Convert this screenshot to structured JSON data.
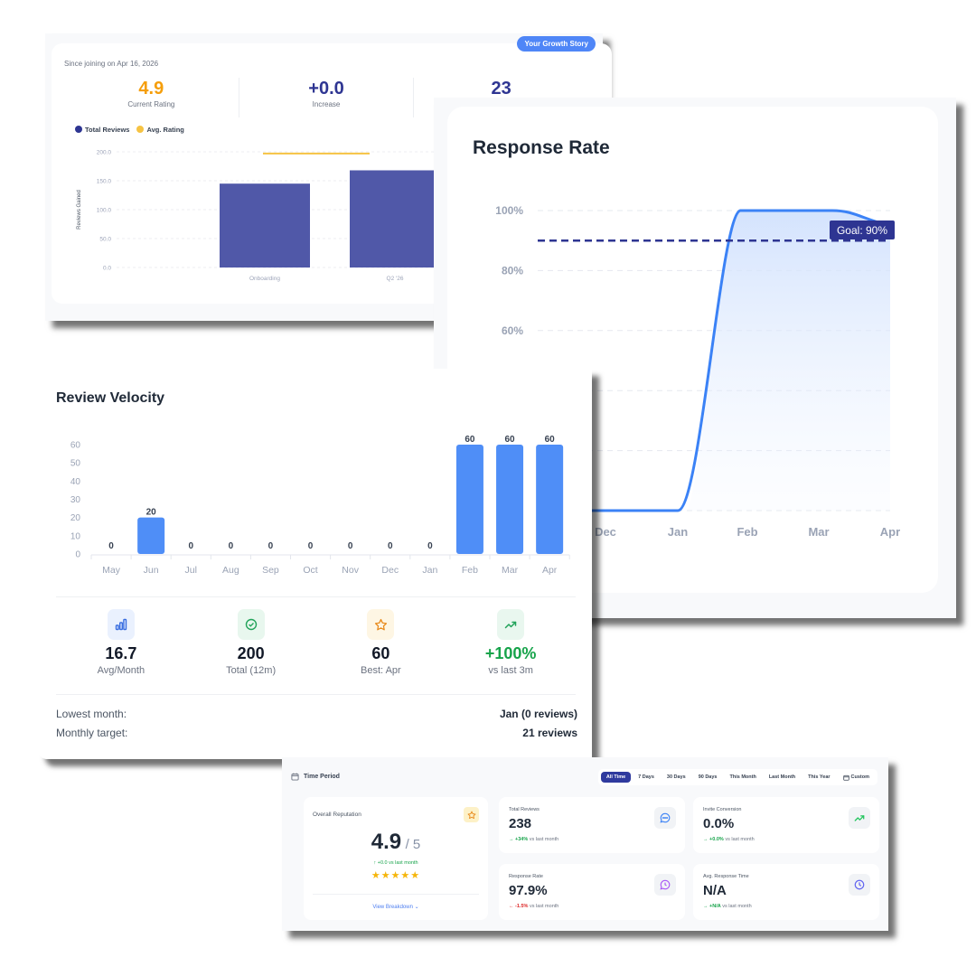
{
  "growth": {
    "badge": "Your Growth Story",
    "since": "Since joining on Apr 16, 2026",
    "stats": [
      {
        "value": "4.9",
        "label": "Current Rating",
        "color": "#f59e0b"
      },
      {
        "value": "+0.0",
        "label": "Increase",
        "color": "#2e3592"
      },
      {
        "value": "23",
        "label": "",
        "color": "#2e3592"
      }
    ],
    "legend": [
      {
        "label": "Total Reviews",
        "color": "#2e3592"
      },
      {
        "label": "Avg. Rating",
        "color": "#f6c343"
      }
    ]
  },
  "response_rate": {
    "title": "Response Rate",
    "goal_label": "Goal: 90%"
  },
  "velocity": {
    "title": "Review Velocity",
    "stats": [
      {
        "icon": "bar-chart-icon",
        "value": "16.7",
        "label": "Avg/Month",
        "color": "#111827",
        "bg": "#eaf1fe",
        "fg": "#3b6fe0"
      },
      {
        "icon": "check-circle-icon",
        "value": "200",
        "label": "Total (12m)",
        "color": "#111827",
        "bg": "#e8f7ee",
        "fg": "#22a35a"
      },
      {
        "icon": "star-icon",
        "value": "60",
        "label": "Best: Apr",
        "color": "#111827",
        "bg": "#fef6e4",
        "fg": "#e8891a"
      },
      {
        "icon": "trending-up-icon",
        "value": "+100%",
        "label": "vs last 3m",
        "color": "#16a34a",
        "bg": "#e9f7ef",
        "fg": "#22a35a"
      }
    ],
    "rows": [
      {
        "key": "Lowest month:",
        "value": "Jan (0 reviews)"
      },
      {
        "key": "Monthly target:",
        "value": "21 reviews"
      }
    ]
  },
  "dashboard": {
    "time_period_label": "Time Period",
    "tabs": [
      "All Time",
      "7 Days",
      "30 Days",
      "90 Days",
      "This Month",
      "Last Month",
      "This Year",
      "Custom"
    ],
    "active_tab": "All Time",
    "reputation": {
      "title": "Overall Reputation",
      "value": "4.9",
      "denominator": "/ 5",
      "change": "↑  +0.0 vs last month",
      "stars": "★★★★★",
      "link": "View Breakdown ⌄"
    },
    "metrics": [
      {
        "title": "Total Reviews",
        "value": "238",
        "arrow": "→",
        "delta": "+34%",
        "trend": "up",
        "suffix": "vs last month",
        "icon": "message-icon",
        "icon_color": "#3b82f6"
      },
      {
        "title": "Invite Conversion",
        "value": "0.0%",
        "arrow": "→",
        "delta": "+0.0%",
        "trend": "up",
        "suffix": "vs last month",
        "icon": "trending-up-icon",
        "icon_color": "#22c55e"
      },
      {
        "title": "Response Rate",
        "value": "97.9%",
        "arrow": "←",
        "delta": "-1.5%",
        "trend": "down",
        "suffix": "vs last month",
        "icon": "message-clock-icon",
        "icon_color": "#a855f7"
      },
      {
        "title": "Avg. Response Time",
        "value": "N/A",
        "arrow": "→",
        "delta": "+N/A",
        "trend": "up",
        "suffix": "vs last month",
        "icon": "clock-icon",
        "icon_color": "#6366f1"
      }
    ]
  },
  "chart_data": [
    {
      "type": "bar",
      "title": "Your Growth Story",
      "categories": [
        "Onboarding",
        "Q2 '26"
      ],
      "series": [
        {
          "name": "Total Reviews",
          "values": [
            145,
            168
          ],
          "color": "#5058a8"
        },
        {
          "name": "Avg. Rating",
          "values": [
            4.9,
            4.9
          ],
          "color": "#f6c343",
          "render": "line"
        }
      ],
      "ylabel": "Reviews Gained",
      "yticks": [
        "0.0",
        "50.0",
        "100.0",
        "150.0",
        "200.0"
      ],
      "ylim": [
        0,
        200
      ],
      "grid": true,
      "legend_position": "top-left"
    },
    {
      "type": "area",
      "title": "Response Rate",
      "categories": [
        "Dec",
        "Jan",
        "Feb",
        "Mar",
        "Apr"
      ],
      "values": [
        0,
        0,
        100,
        100,
        95
      ],
      "yticks": [
        "60%",
        "80%",
        "100%"
      ],
      "ylim": [
        0,
        100
      ],
      "goal": 90,
      "goal_label": "Goal: 90%",
      "grid": true
    },
    {
      "type": "bar",
      "title": "Review Velocity",
      "categories": [
        "May",
        "Jun",
        "Jul",
        "Aug",
        "Sep",
        "Oct",
        "Nov",
        "Dec",
        "Jan",
        "Feb",
        "Mar",
        "Apr"
      ],
      "values": [
        0,
        20,
        0,
        0,
        0,
        0,
        0,
        0,
        0,
        60,
        60,
        60
      ],
      "yticks": [
        "0",
        "10",
        "20",
        "30",
        "40",
        "50",
        "60"
      ],
      "ylim": [
        0,
        60
      ],
      "data_labels": true,
      "grid": false
    }
  ]
}
